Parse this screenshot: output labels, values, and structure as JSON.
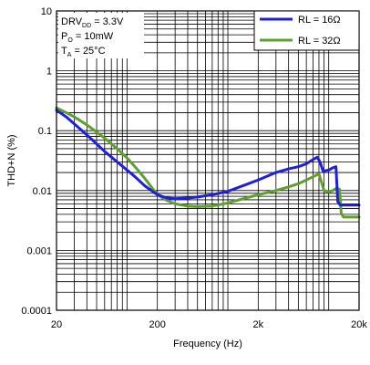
{
  "chart_data": {
    "type": "line",
    "xlabel": "Frequency (Hz)",
    "ylabel": "THD+N (%)",
    "x_scale": "log",
    "y_scale": "log",
    "xlim": [
      20,
      20000
    ],
    "ylim": [
      0.0001,
      10
    ],
    "x_ticks": [
      20,
      200,
      2000,
      20000
    ],
    "x_tick_labels": [
      "20",
      "200",
      "2k",
      "20k"
    ],
    "y_ticks": [
      0.0001,
      0.001,
      0.01,
      0.1,
      1,
      10
    ],
    "y_tick_labels": [
      "0.0001",
      "0.001",
      "0.01",
      "0.1",
      "1",
      "10"
    ],
    "grid": true,
    "legend_position": "top-right",
    "conditions": {
      "line1": {
        "prefix": "DRV",
        "sub": "DD",
        "suffix": " = 3.3V"
      },
      "line2": {
        "prefix": "P",
        "sub": "O",
        "suffix": " = 10mW"
      },
      "line3": {
        "prefix": "T",
        "sub": "A",
        "suffix": " = 25°C"
      }
    },
    "series": [
      {
        "name": "RL = 16Ω",
        "color": "#1f1fdf",
        "points": [
          [
            20,
            0.22
          ],
          [
            25,
            0.17
          ],
          [
            30,
            0.13
          ],
          [
            40,
            0.085
          ],
          [
            50,
            0.06
          ],
          [
            60,
            0.045
          ],
          [
            80,
            0.03
          ],
          [
            100,
            0.022
          ],
          [
            120,
            0.017
          ],
          [
            150,
            0.012
          ],
          [
            200,
            0.0085
          ],
          [
            250,
            0.0075
          ],
          [
            300,
            0.0073
          ],
          [
            400,
            0.0075
          ],
          [
            500,
            0.0078
          ],
          [
            700,
            0.0085
          ],
          [
            1000,
            0.0097
          ],
          [
            1500,
            0.0125
          ],
          [
            2000,
            0.015
          ],
          [
            3000,
            0.02
          ],
          [
            4000,
            0.023
          ],
          [
            5000,
            0.025
          ],
          [
            6000,
            0.028
          ],
          [
            7000,
            0.033
          ],
          [
            7700,
            0.036
          ],
          [
            8200,
            0.03
          ],
          [
            8800,
            0.021
          ],
          [
            10000,
            0.022
          ],
          [
            11000,
            0.024
          ],
          [
            11800,
            0.025
          ],
          [
            12300,
            0.0065
          ],
          [
            13000,
            0.0057
          ],
          [
            20000,
            0.0057
          ]
        ]
      },
      {
        "name": "RL = 32Ω",
        "color": "#5f9f2f",
        "points": [
          [
            20,
            0.24
          ],
          [
            25,
            0.2
          ],
          [
            30,
            0.17
          ],
          [
            40,
            0.125
          ],
          [
            50,
            0.095
          ],
          [
            60,
            0.075
          ],
          [
            80,
            0.05
          ],
          [
            100,
            0.035
          ],
          [
            120,
            0.025
          ],
          [
            150,
            0.016
          ],
          [
            200,
            0.0085
          ],
          [
            250,
            0.0068
          ],
          [
            300,
            0.006
          ],
          [
            400,
            0.0055
          ],
          [
            500,
            0.0054
          ],
          [
            700,
            0.0055
          ],
          [
            1000,
            0.0062
          ],
          [
            1500,
            0.0075
          ],
          [
            2000,
            0.0085
          ],
          [
            3000,
            0.01
          ],
          [
            4000,
            0.0115
          ],
          [
            5000,
            0.013
          ],
          [
            6000,
            0.015
          ],
          [
            7000,
            0.017
          ],
          [
            8000,
            0.019
          ],
          [
            9000,
            0.01
          ],
          [
            10000,
            0.0095
          ],
          [
            11000,
            0.01
          ],
          [
            12000,
            0.011
          ],
          [
            12800,
            0.0105
          ],
          [
            13300,
            0.0042
          ],
          [
            14000,
            0.0036
          ],
          [
            20000,
            0.0036
          ]
        ]
      }
    ]
  }
}
